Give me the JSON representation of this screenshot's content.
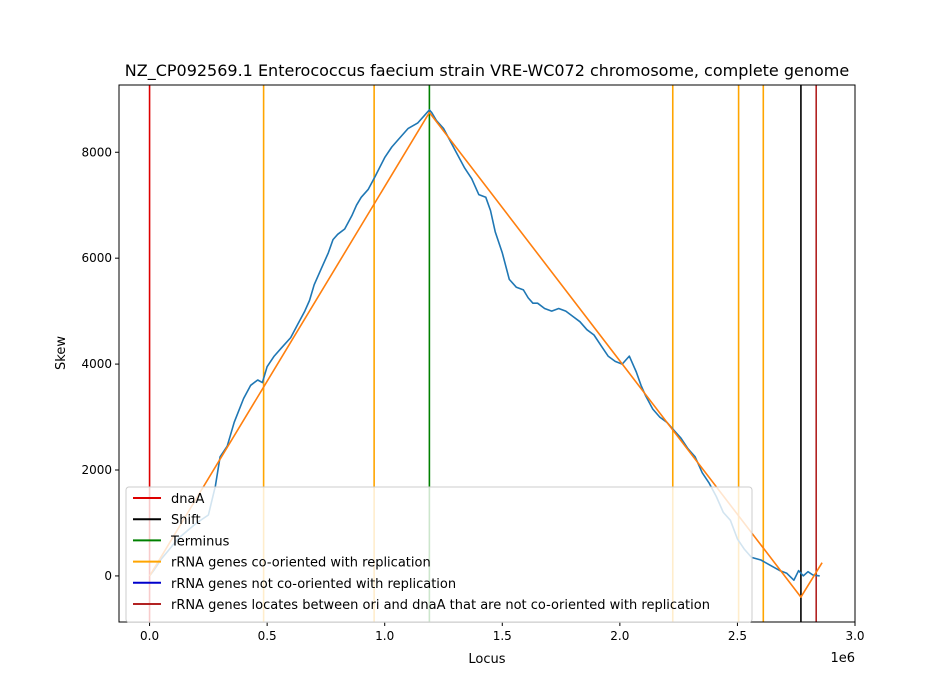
{
  "chart_data": {
    "type": "line",
    "title": "NZ_CP092569.1 Enterococcus faecium strain VRE-WC072 chromosome, complete genome",
    "xlabel": "Locus",
    "ylabel": "Skew",
    "x_offset_label": "1e6",
    "xlim": [
      -0.13,
      3.0
    ],
    "ylim": [
      -870,
      9270
    ],
    "x_ticks": [
      {
        "value": 0.0,
        "label": "0.0"
      },
      {
        "value": 0.5,
        "label": "0.5"
      },
      {
        "value": 1.0,
        "label": "1.0"
      },
      {
        "value": 1.5,
        "label": "1.5"
      },
      {
        "value": 2.0,
        "label": "2.0"
      },
      {
        "value": 2.5,
        "label": "2.5"
      },
      {
        "value": 3.0,
        "label": "3.0"
      }
    ],
    "y_ticks": [
      {
        "value": 0,
        "label": "0"
      },
      {
        "value": 2000,
        "label": "2000"
      },
      {
        "value": 4000,
        "label": "4000"
      },
      {
        "value": 6000,
        "label": "6000"
      },
      {
        "value": 8000,
        "label": "8000"
      }
    ],
    "grid": false,
    "legend_position": "lower-left",
    "series": [
      {
        "color": "#1f77b4",
        "x": [
          0.0,
          0.02,
          0.05,
          0.08,
          0.12,
          0.16,
          0.2,
          0.25,
          0.28,
          0.3,
          0.33,
          0.36,
          0.4,
          0.43,
          0.46,
          0.48,
          0.5,
          0.53,
          0.56,
          0.6,
          0.63,
          0.66,
          0.68,
          0.7,
          0.73,
          0.76,
          0.78,
          0.8,
          0.83,
          0.86,
          0.88,
          0.9,
          0.93,
          0.96,
          1.0,
          1.03,
          1.06,
          1.1,
          1.14,
          1.17,
          1.19,
          1.2,
          1.22,
          1.25,
          1.28,
          1.31,
          1.34,
          1.37,
          1.4,
          1.43,
          1.45,
          1.47,
          1.5,
          1.53,
          1.56,
          1.59,
          1.61,
          1.63,
          1.65,
          1.68,
          1.71,
          1.74,
          1.77,
          1.8,
          1.83,
          1.86,
          1.89,
          1.92,
          1.95,
          1.98,
          2.01,
          2.04,
          2.07,
          2.09,
          2.11,
          2.14,
          2.17,
          2.2,
          2.23,
          2.26,
          2.29,
          2.32,
          2.35,
          2.38,
          2.41,
          2.44,
          2.47,
          2.5,
          2.53,
          2.56,
          2.6,
          2.64,
          2.68,
          2.71,
          2.74,
          2.76,
          2.78,
          2.8,
          2.82,
          2.85
        ],
        "values": [
          0,
          120,
          320,
          480,
          700,
          850,
          1000,
          1150,
          1700,
          2250,
          2450,
          2900,
          3350,
          3600,
          3700,
          3650,
          3950,
          4150,
          4300,
          4500,
          4750,
          5000,
          5200,
          5500,
          5800,
          6100,
          6350,
          6450,
          6550,
          6800,
          7000,
          7150,
          7300,
          7550,
          7900,
          8100,
          8250,
          8450,
          8550,
          8700,
          8800,
          8750,
          8600,
          8450,
          8200,
          7950,
          7700,
          7500,
          7200,
          7150,
          6900,
          6500,
          6100,
          5600,
          5450,
          5400,
          5250,
          5150,
          5150,
          5050,
          5000,
          5050,
          5000,
          4900,
          4800,
          4650,
          4550,
          4350,
          4150,
          4050,
          4000,
          4150,
          3850,
          3600,
          3400,
          3150,
          3000,
          2900,
          2750,
          2600,
          2400,
          2250,
          1950,
          1750,
          1500,
          1200,
          1050,
          700,
          500,
          350,
          300,
          200,
          100,
          50,
          -80,
          100,
          0,
          80,
          20,
          0
        ]
      },
      {
        "color": "#ff7f0e",
        "x": [
          0.0,
          1.19,
          2.77,
          2.86
        ],
        "values": [
          0,
          8750,
          -400,
          250
        ]
      }
    ],
    "vertical_lines": [
      {
        "x": 0.0,
        "color": "#dd0000",
        "legend": "dnaA"
      },
      {
        "x": 2.77,
        "color": "#000000",
        "legend": "Shift"
      },
      {
        "x": 1.19,
        "color": "#008000",
        "legend": "Terminus"
      },
      {
        "x": 0.485,
        "color": "#ffa500",
        "legend": "rRNA genes co-oriented with replication"
      },
      {
        "x": 0.955,
        "color": "#ffa500",
        "legend": ""
      },
      {
        "x": 2.225,
        "color": "#ffa500",
        "legend": ""
      },
      {
        "x": 2.505,
        "color": "#ffa500",
        "legend": ""
      },
      {
        "x": 2.61,
        "color": "#ffa500",
        "legend": ""
      },
      {
        "x": 2.835,
        "color": "#b22222",
        "legend": "rRNA genes locates between ori and dnaA that are not co-oriented with replication"
      }
    ],
    "legend_entries": [
      {
        "label": "dnaA",
        "color": "#dd0000"
      },
      {
        "label": "Shift",
        "color": "#000000"
      },
      {
        "label": "Terminus",
        "color": "#008000"
      },
      {
        "label": "rRNA genes co-oriented with replication",
        "color": "#ffa500"
      },
      {
        "label": "rRNA genes not co-oriented with replication",
        "color": "#0000cc"
      },
      {
        "label": "rRNA genes locates between ori and dnaA that are not co-oriented with replication",
        "color": "#b22222"
      }
    ]
  }
}
